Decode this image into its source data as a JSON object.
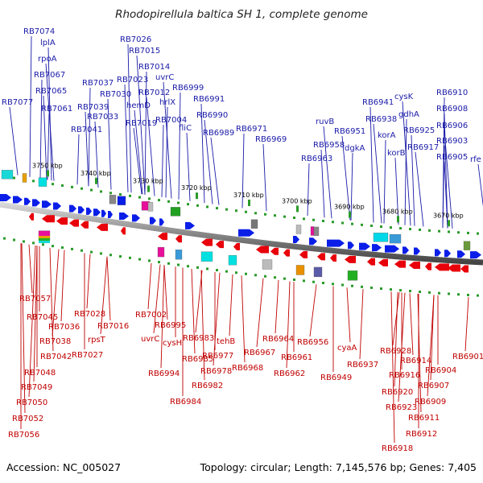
{
  "title": "Rhodopirellula baltica SH 1, complete genome",
  "footer": {
    "accession": "Accession: NC_005027",
    "summary": "Topology: circular; Length: 7,145,576 bp; Genes: 7,405"
  },
  "scale_labels": [
    "3750 kbp",
    "3740 kbp",
    "3730 kbp",
    "3720 kbp",
    "3710 kbp",
    "3700 kbp",
    "3690 kbp",
    "3680 kbp",
    "3670 kbp"
  ],
  "top_labels": [
    "RB7074",
    "lplA",
    "rpoA",
    "RB7067",
    "RB7065",
    "RB7077",
    "RB7061",
    "RB7026",
    "RB7015",
    "RB7014",
    "RB7023",
    "uvrC",
    "RB7037",
    "RB7030",
    "RB7012",
    "RB6999",
    "RB7039",
    "hemD",
    "hrlX",
    "RB7033",
    "RB7019",
    "RB7004",
    "RB6991",
    "RB6990",
    "RB7041",
    "fliC",
    "RB6989",
    "RB6971",
    "RB6969",
    "ruvB",
    "RB6963",
    "RB6958",
    "RB6951",
    "dgkA",
    "RB6941",
    "RB6938",
    "korA",
    "korB",
    "cysK",
    "gdhA",
    "RB6925",
    "RB6917",
    "RB6910",
    "RB6908",
    "RB6906",
    "RB6903",
    "RB6905",
    "rfe"
  ],
  "bottom_labels": [
    "RB7057",
    "RB7045",
    "RB7036",
    "RB7038",
    "RB7042",
    "RB7048",
    "RB7049",
    "RB7050",
    "RB7052",
    "RB7056",
    "RB7028",
    "rpsT",
    "RB7016",
    "RB7027",
    "RB7002",
    "uvrC",
    "RB6995",
    "cysH",
    "RB6994",
    "RB6983",
    "RB6985",
    "RB6977",
    "tehB",
    "RB6978",
    "RB6982",
    "RB6984",
    "RB6964",
    "RB6967",
    "RB6968",
    "RB6961",
    "RB6962",
    "RB6956",
    "cyaA",
    "RB6949",
    "RB6937",
    "RB6928",
    "RB6914",
    "RB6916",
    "RB6920",
    "RB6923",
    "RB6918",
    "RB6904",
    "RB6907",
    "RB6909",
    "RB6911",
    "RB6912",
    "RB6901"
  ],
  "colors": {
    "forward_genes": "#0a1ee8",
    "reverse_genes": "#e8000a",
    "top_labels": "#1a1aa8",
    "bottom_labels": "#c00000",
    "scale_ticks": "#2a9a2a",
    "backbone": "#7a7a7a"
  }
}
